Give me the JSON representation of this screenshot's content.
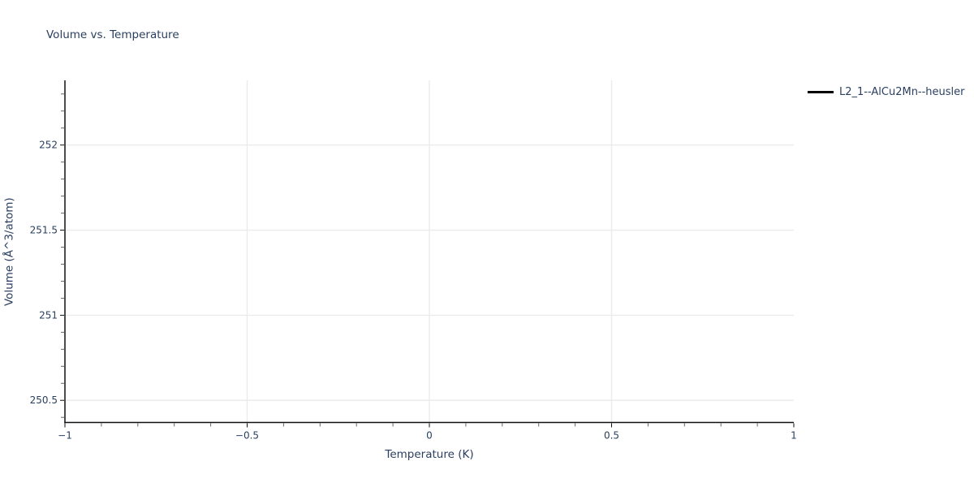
{
  "colors": {
    "background": "#ffffff",
    "text": "#2a3f5f",
    "axis_line": "#111111",
    "tick": "#666666",
    "grid": "#ebebeb",
    "series_line": "#000000"
  },
  "chart_data": {
    "type": "line",
    "title": "Volume vs. Temperature",
    "xlabel": "Temperature (K)",
    "ylabel": "Volume (Å^3/atom)",
    "xlim": [
      -1,
      1
    ],
    "ylim": [
      250.37,
      252.38
    ],
    "x_ticks": [
      {
        "value": -1,
        "label": "−1"
      },
      {
        "value": -0.5,
        "label": "−0.5"
      },
      {
        "value": 0,
        "label": "0"
      },
      {
        "value": 0.5,
        "label": "0.5"
      },
      {
        "value": 1,
        "label": "1"
      }
    ],
    "y_ticks": [
      {
        "value": 250.5,
        "label": "250.5"
      },
      {
        "value": 251,
        "label": "251"
      },
      {
        "value": 251.5,
        "label": "251.5"
      },
      {
        "value": 252,
        "label": "252"
      }
    ],
    "minor_tick_step": 0.1,
    "grid": true,
    "legend_position": "top-right",
    "series": [
      {
        "name": "L2_1--AlCu2Mn--heusler",
        "color": "#000000",
        "line_width": 3,
        "x": [],
        "y": []
      }
    ]
  }
}
